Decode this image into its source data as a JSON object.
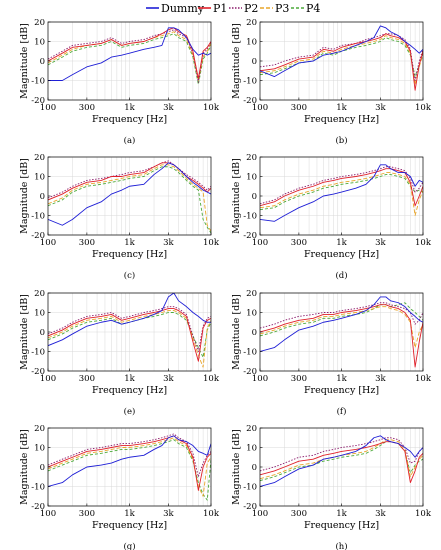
{
  "legend": [
    {
      "label": "Dummy",
      "color": "#1f1fd6",
      "dash": ""
    },
    {
      "label": "P1",
      "color": "#e0202a",
      "dash": ""
    },
    {
      "label": "P2",
      "color": "#8b1a6b",
      "dash": "1.5,1.5"
    },
    {
      "label": "P3",
      "color": "#e9a52a",
      "dash": "4,2"
    },
    {
      "label": "P4",
      "color": "#4caa3a",
      "dash": "3,2"
    }
  ],
  "chart_data": {
    "type": "line",
    "xlabel": "Frequency [Hz]",
    "ylabel": "Magnitude [dB]",
    "xscale": "log",
    "xlim": [
      100,
      10000
    ],
    "ylim": [
      -20,
      20
    ],
    "xticks": [
      100,
      300,
      1000,
      3000,
      10000
    ],
    "xtick_labels": [
      "100",
      "300",
      "1k",
      "3k",
      "10k"
    ],
    "yticks": [
      -20,
      -10,
      0,
      10,
      20
    ],
    "ytick_labels": [
      "-20",
      "-10",
      "0",
      "10",
      "20"
    ],
    "grid": true,
    "frequencies": [
      100,
      150,
      200,
      300,
      450,
      600,
      800,
      1000,
      1500,
      2000,
      2500,
      3000,
      3500,
      4000,
      5000,
      6000,
      7000,
      8000,
      9000,
      10000
    ],
    "panels": [
      {
        "caption": "(a)",
        "series": [
          {
            "name": "Dummy",
            "values": [
              -10,
              -10,
              -7,
              -3,
              -1,
              2,
              3,
              4,
              6,
              7,
              8,
              17,
              17,
              16,
              12,
              6,
              3,
              4,
              3,
              4
            ]
          },
          {
            "name": "P1",
            "values": [
              0,
              4,
              7,
              8,
              9,
              11,
              8,
              9,
              10,
              12,
              14,
              16,
              17,
              15,
              13,
              5,
              -9,
              5,
              7,
              10
            ]
          },
          {
            "name": "P2",
            "values": [
              1,
              5,
              8,
              9,
              10,
              12,
              9,
              10,
              11,
              13,
              14,
              15,
              16,
              14,
              12,
              4,
              -11,
              4,
              6,
              10
            ]
          },
          {
            "name": "P3",
            "values": [
              -1,
              3,
              6,
              8,
              9,
              11,
              8,
              9,
              10,
              12,
              13,
              14,
              15,
              13,
              11,
              3,
              -10,
              2,
              5,
              9
            ]
          },
          {
            "name": "P4",
            "values": [
              -2,
              2,
              5,
              7,
              8,
              10,
              7,
              8,
              9,
              11,
              12,
              13,
              14,
              12,
              10,
              2,
              -12,
              1,
              4,
              8
            ]
          }
        ]
      },
      {
        "caption": "(b)",
        "series": [
          {
            "name": "Dummy",
            "values": [
              -5,
              -8,
              -5,
              -1,
              0,
              3,
              4,
              5,
              8,
              10,
              12,
              18,
              17,
              15,
              13,
              10,
              8,
              6,
              4,
              6
            ]
          },
          {
            "name": "P1",
            "values": [
              -5,
              -4,
              -2,
              1,
              2,
              6,
              5,
              7,
              9,
              10,
              11,
              12,
              14,
              13,
              12,
              10,
              5,
              -15,
              -2,
              5
            ]
          },
          {
            "name": "P2",
            "values": [
              -3,
              -2,
              0,
              2,
              3,
              7,
              6,
              8,
              9,
              11,
              12,
              13,
              14,
              14,
              13,
              11,
              6,
              -10,
              0,
              6
            ]
          },
          {
            "name": "P3",
            "values": [
              -6,
              -5,
              -3,
              0,
              1,
              5,
              4,
              6,
              8,
              9,
              10,
              11,
              13,
              12,
              11,
              9,
              4,
              -12,
              -3,
              4
            ]
          },
          {
            "name": "P4",
            "values": [
              -7,
              -6,
              -4,
              -1,
              0,
              4,
              3,
              5,
              7,
              8,
              9,
              10,
              12,
              11,
              10,
              8,
              3,
              -8,
              -2,
              3
            ]
          }
        ]
      },
      {
        "caption": "(c)",
        "series": [
          {
            "name": "Dummy",
            "values": [
              -12,
              -15,
              -12,
              -6,
              -3,
              1,
              3,
              5,
              6,
              11,
              14,
              17,
              16,
              14,
              10,
              7,
              5,
              3,
              2,
              1
            ]
          },
          {
            "name": "P1",
            "values": [
              -2,
              1,
              4,
              7,
              8,
              10,
              10,
              11,
              12,
              15,
              17,
              17,
              16,
              14,
              10,
              8,
              6,
              4,
              2,
              4
            ]
          },
          {
            "name": "P2",
            "values": [
              -1,
              2,
              5,
              8,
              9,
              10,
              11,
              12,
              13,
              15,
              17,
              18,
              16,
              14,
              11,
              9,
              7,
              5,
              3,
              5
            ]
          },
          {
            "name": "P3",
            "values": [
              -4,
              -1,
              3,
              6,
              7,
              8,
              9,
              10,
              11,
              14,
              16,
              16,
              15,
              13,
              9,
              6,
              4,
              2,
              -15,
              -18
            ]
          },
          {
            "name": "P4",
            "values": [
              -5,
              -2,
              2,
              5,
              6,
              7,
              8,
              9,
              10,
              13,
              15,
              15,
              14,
              12,
              8,
              5,
              3,
              -12,
              -16,
              -19
            ]
          }
        ]
      },
      {
        "caption": "(d)",
        "series": [
          {
            "name": "Dummy",
            "values": [
              -12,
              -13,
              -10,
              -6,
              -3,
              0,
              1,
              2,
              4,
              6,
              10,
              16,
              16,
              14,
              12,
              12,
              10,
              5,
              8,
              7
            ]
          },
          {
            "name": "P1",
            "values": [
              -5,
              -3,
              0,
              3,
              5,
              7,
              8,
              9,
              10,
              11,
              12,
              13,
              14,
              14,
              13,
              12,
              7,
              -5,
              0,
              5
            ]
          },
          {
            "name": "P2",
            "values": [
              -4,
              -2,
              1,
              4,
              6,
              8,
              9,
              10,
              11,
              12,
              13,
              14,
              15,
              15,
              14,
              13,
              9,
              2,
              4,
              7
            ]
          },
          {
            "name": "P3",
            "values": [
              -6,
              -5,
              -2,
              1,
              3,
              5,
              6,
              7,
              8,
              9,
              10,
              11,
              12,
              12,
              11,
              10,
              6,
              -10,
              -2,
              3
            ]
          },
          {
            "name": "P4",
            "values": [
              -7,
              -6,
              -3,
              0,
              2,
              4,
              5,
              6,
              7,
              8,
              9,
              10,
              11,
              11,
              10,
              9,
              5,
              2,
              3,
              2
            ]
          }
        ]
      },
      {
        "caption": "(e)",
        "series": [
          {
            "name": "Dummy",
            "values": [
              -7,
              -4,
              -1,
              3,
              5,
              6,
              4,
              5,
              7,
              9,
              11,
              18,
              20,
              16,
              13,
              10,
              8,
              6,
              5,
              5
            ]
          },
          {
            "name": "P1",
            "values": [
              -2,
              1,
              4,
              7,
              8,
              9,
              6,
              7,
              9,
              10,
              11,
              12,
              12,
              11,
              8,
              -5,
              -15,
              2,
              6,
              7
            ]
          },
          {
            "name": "P2",
            "values": [
              -1,
              2,
              5,
              8,
              9,
              10,
              7,
              8,
              10,
              11,
              12,
              13,
              13,
              12,
              9,
              -2,
              -10,
              3,
              7,
              8
            ]
          },
          {
            "name": "P3",
            "values": [
              -3,
              0,
              3,
              6,
              7,
              8,
              5,
              6,
              8,
              9,
              10,
              11,
              11,
              10,
              7,
              -3,
              -12,
              -18,
              2,
              6
            ]
          },
          {
            "name": "P4",
            "values": [
              -4,
              -1,
              2,
              5,
              6,
              7,
              4,
              5,
              7,
              8,
              9,
              10,
              10,
              9,
              6,
              -2,
              -8,
              -13,
              1,
              5
            ]
          }
        ]
      },
      {
        "caption": "(f)",
        "series": [
          {
            "name": "Dummy",
            "values": [
              -10,
              -8,
              -4,
              1,
              3,
              5,
              6,
              7,
              9,
              11,
              14,
              18,
              18,
              16,
              15,
              13,
              10,
              8,
              6,
              5
            ]
          },
          {
            "name": "P1",
            "values": [
              0,
              2,
              4,
              6,
              7,
              9,
              9,
              10,
              11,
              12,
              13,
              14,
              14,
              13,
              12,
              10,
              6,
              -18,
              -5,
              5
            ]
          },
          {
            "name": "P2",
            "values": [
              2,
              4,
              6,
              8,
              9,
              10,
              10,
              11,
              12,
              13,
              14,
              15,
              15,
              14,
              13,
              12,
              10,
              4,
              6,
              10
            ]
          },
          {
            "name": "P3",
            "values": [
              -1,
              1,
              3,
              5,
              6,
              8,
              8,
              9,
              10,
              11,
              12,
              13,
              13,
              12,
              11,
              9,
              5,
              -8,
              0,
              4
            ]
          },
          {
            "name": "P4",
            "values": [
              -2,
              0,
              2,
              4,
              5,
              7,
              7,
              8,
              9,
              10,
              12,
              14,
              14,
              13,
              14,
              15,
              12,
              10,
              8,
              6
            ]
          }
        ]
      },
      {
        "caption": "(g)",
        "series": [
          {
            "name": "Dummy",
            "values": [
              -10,
              -8,
              -4,
              0,
              1,
              2,
              4,
              5,
              6,
              9,
              11,
              15,
              16,
              14,
              13,
              11,
              8,
              7,
              6,
              12
            ]
          },
          {
            "name": "P1",
            "values": [
              0,
              3,
              5,
              8,
              9,
              10,
              11,
              11,
              12,
              13,
              14,
              15,
              16,
              14,
              12,
              5,
              -12,
              0,
              5,
              7
            ]
          },
          {
            "name": "P2",
            "values": [
              1,
              4,
              6,
              9,
              10,
              11,
              12,
              12,
              13,
              14,
              15,
              16,
              17,
              15,
              13,
              7,
              -5,
              2,
              6,
              8
            ]
          },
          {
            "name": "P3",
            "values": [
              -1,
              2,
              4,
              7,
              8,
              9,
              10,
              10,
              11,
              12,
              13,
              14,
              15,
              13,
              11,
              4,
              -10,
              -15,
              2,
              5
            ]
          },
          {
            "name": "P4",
            "values": [
              -2,
              1,
              3,
              6,
              7,
              8,
              9,
              9,
              10,
              11,
              12,
              13,
              14,
              12,
              10,
              3,
              -8,
              -14,
              -17,
              4
            ]
          }
        ]
      },
      {
        "caption": "(h)",
        "series": [
          {
            "name": "Dummy",
            "values": [
              -10,
              -8,
              -5,
              -1,
              1,
              4,
              5,
              6,
              8,
              11,
              15,
              16,
              14,
              13,
              12,
              10,
              8,
              5,
              8,
              10
            ]
          },
          {
            "name": "P1",
            "values": [
              -4,
              -2,
              0,
              3,
              4,
              6,
              7,
              8,
              9,
              10,
              11,
              12,
              13,
              13,
              12,
              8,
              -8,
              -2,
              5,
              7
            ]
          },
          {
            "name": "P2",
            "values": [
              -2,
              0,
              2,
              5,
              6,
              8,
              9,
              10,
              11,
              12,
              13,
              14,
              15,
              15,
              14,
              10,
              2,
              3,
              8,
              10
            ]
          },
          {
            "name": "P3",
            "values": [
              -6,
              -4,
              -2,
              1,
              2,
              4,
              5,
              6,
              7,
              8,
              10,
              12,
              14,
              14,
              13,
              9,
              -5,
              0,
              4,
              6
            ]
          },
          {
            "name": "P4",
            "values": [
              -7,
              -5,
              -3,
              0,
              1,
              3,
              4,
              5,
              6,
              7,
              9,
              11,
              13,
              13,
              12,
              8,
              -3,
              1,
              3,
              4
            ]
          }
        ]
      }
    ]
  }
}
